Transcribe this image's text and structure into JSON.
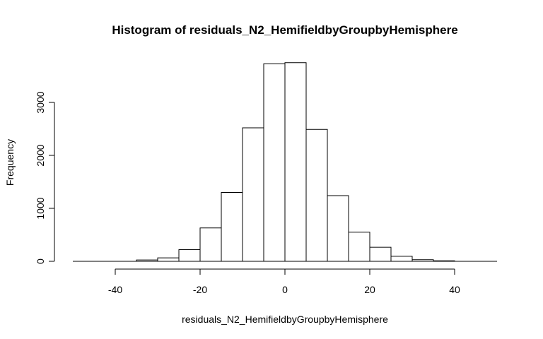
{
  "chart_data": {
    "type": "bar",
    "title": "Histogram of residuals_N2_HemifieldbyGroupbyHemisphere",
    "xlabel": "residuals_N2_HemifieldbyGroupbyHemisphere",
    "ylabel": "Frequency",
    "bin_width": 5,
    "bins": [
      {
        "start": -50,
        "end": -45,
        "count": 0
      },
      {
        "start": -45,
        "end": -40,
        "count": 0
      },
      {
        "start": -40,
        "end": -35,
        "count": 0
      },
      {
        "start": -35,
        "end": -30,
        "count": 25
      },
      {
        "start": -30,
        "end": -25,
        "count": 65
      },
      {
        "start": -25,
        "end": -20,
        "count": 220
      },
      {
        "start": -20,
        "end": -15,
        "count": 630
      },
      {
        "start": -15,
        "end": -10,
        "count": 1300
      },
      {
        "start": -10,
        "end": -5,
        "count": 2520
      },
      {
        "start": -5,
        "end": 0,
        "count": 3730
      },
      {
        "start": 0,
        "end": 5,
        "count": 3750
      },
      {
        "start": 5,
        "end": 10,
        "count": 2490
      },
      {
        "start": 10,
        "end": 15,
        "count": 1240
      },
      {
        "start": 15,
        "end": 20,
        "count": 550
      },
      {
        "start": 20,
        "end": 25,
        "count": 265
      },
      {
        "start": 25,
        "end": 30,
        "count": 95
      },
      {
        "start": 30,
        "end": 35,
        "count": 30
      },
      {
        "start": 35,
        "end": 40,
        "count": 10
      },
      {
        "start": 40,
        "end": 45,
        "count": 0
      },
      {
        "start": 45,
        "end": 50,
        "count": 0
      }
    ],
    "xlim": [
      -50,
      50
    ],
    "ylim": [
      0,
      3750
    ],
    "x_ticks": [
      -40,
      -20,
      0,
      20,
      40
    ],
    "x_tick_labels": [
      "-40",
      "-20",
      "0",
      "20",
      "40"
    ],
    "y_ticks": [
      0,
      1000,
      2000,
      3000
    ],
    "y_tick_labels": [
      "0",
      "1000",
      "2000",
      "3000"
    ],
    "grid": false,
    "bar_fill": "#ffffff",
    "bar_stroke": "#000000"
  }
}
